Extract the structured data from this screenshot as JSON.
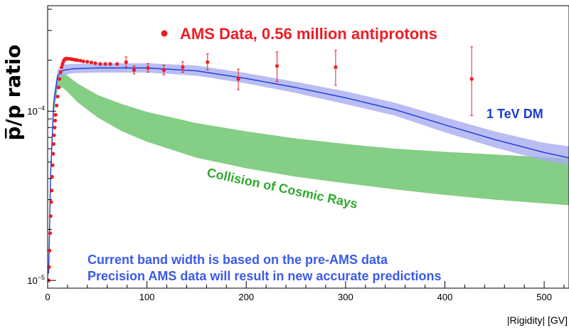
{
  "chart_data": {
    "type": "line",
    "xlabel": "|Rigidity| [GV]",
    "ylabel": "p̅/p ratio",
    "xlim": [
      0,
      525
    ],
    "ylim": [
      9e-06,
      0.00042
    ],
    "y_scale": "log",
    "x_ticks": [
      "0",
      "100",
      "200",
      "300",
      "400",
      "500"
    ],
    "y_ticks": [
      {
        "base": "10",
        "exp": "−5",
        "value": 1e-05
      },
      {
        "base": "10",
        "exp": "−4",
        "value": 0.0001
      }
    ],
    "grid": false,
    "legend": {
      "placement": "top-center",
      "text": "AMS Data, 0.56 million antiprotons",
      "color": "#ee1c25"
    },
    "annotations": {
      "dm_label": "1 TeV DM",
      "cr_label": "Collision of Cosmic Rays",
      "note_line1": "Current band width is based on the pre-AMS data",
      "note_line2": "Precision AMS data will result in new accurate predictions"
    },
    "colors": {
      "data": "#ee1c25",
      "dm_band": "#a8acf0",
      "dm_line": "#1a3ad6",
      "cr_band": "#7ecb7e",
      "cr_text": "#2ea82e",
      "note_text": "#3a5ae8"
    },
    "series": [
      {
        "name": "AMS Data, 0.56 million antiprotons",
        "kind": "points",
        "x": [
          1,
          1.5,
          2,
          2.5,
          3,
          3.5,
          4,
          4.5,
          5,
          5.5,
          6,
          6.5,
          7,
          7.5,
          8,
          9,
          10,
          11,
          12,
          13,
          14,
          15,
          16,
          17,
          18,
          19,
          20,
          22,
          24,
          26,
          28,
          30,
          33,
          36,
          40,
          44,
          48,
          53,
          58,
          63,
          70,
          79,
          87,
          101,
          117,
          136,
          161,
          192,
          231,
          290,
          427
        ],
        "y": [
          1e-05,
          1.2e-05,
          1.5e-05,
          1.9e-05,
          2.4e-05,
          2.9e-05,
          3.4e-05,
          4.1e-05,
          4.8e-05,
          5.6e-05,
          6.4e-05,
          7.2e-05,
          8e-05,
          8.8e-05,
          9.5e-05,
          0.000108,
          0.000122,
          0.000138,
          0.000155,
          0.00017,
          0.000182,
          0.00019,
          0.000197,
          0.000202,
          0.000204,
          0.000205,
          0.000204,
          0.000204,
          0.000203,
          0.000202,
          0.000201,
          0.0002,
          0.000199,
          0.000197,
          0.000196,
          0.000194,
          0.000192,
          0.00019,
          0.00019,
          0.00019,
          0.00019,
          0.000195,
          0.000175,
          0.00018,
          0.000175,
          0.000182,
          0.000195,
          0.000155,
          0.000185,
          0.000182,
          0.000155
        ],
        "yerr_up": [
          0,
          0,
          0,
          0,
          0,
          0,
          0,
          0,
          0,
          0,
          0,
          0,
          0,
          0,
          0,
          0,
          0,
          0,
          0,
          0,
          0,
          0,
          0,
          0,
          0,
          0,
          0,
          0,
          0,
          0,
          0,
          0,
          0,
          0,
          0,
          0,
          0,
          6e-07,
          8e-07,
          1e-06,
          1.2e-06,
          1.4e-05,
          1e-05,
          1.1e-05,
          1.2e-05,
          1.4e-05,
          2.3e-05,
          2.2e-05,
          3.9e-05,
          4.7e-05,
          8.5e-05
        ],
        "yerr_down": [
          0,
          0,
          0,
          0,
          0,
          0,
          0,
          0,
          0,
          0,
          0,
          0,
          0,
          0,
          0,
          0,
          0,
          0,
          0,
          0,
          0,
          0,
          0,
          0,
          0,
          0,
          0,
          0,
          0,
          0,
          0,
          0,
          0,
          0,
          0,
          0,
          0,
          6e-07,
          8e-07,
          1e-06,
          1.2e-06,
          1.3e-05,
          9e-06,
          1e-05,
          1.1e-05,
          1.2e-05,
          2e-05,
          2.1e-05,
          3.5e-05,
          4e-05,
          6.1e-05
        ]
      },
      {
        "name": "1 TeV DM",
        "kind": "band",
        "x": [
          1,
          3,
          6,
          10,
          15,
          25,
          50,
          100,
          150,
          200,
          250,
          300,
          350,
          400,
          450,
          500,
          525
        ],
        "upper": [
          1.2e-05,
          5e-05,
          0.000125,
          0.000175,
          0.000188,
          0.00019,
          0.000192,
          0.000192,
          0.000186,
          0.000168,
          0.000149,
          0.000131,
          0.000112,
          9.2e-05,
          7.6e-05,
          6.5e-05,
          6.2e-05
        ],
        "lower": [
          1e-05,
          3.8e-05,
          0.0001,
          0.000148,
          0.000162,
          0.000168,
          0.000169,
          0.000169,
          0.000162,
          0.000146,
          0.000128,
          0.00011,
          9.4e-05,
          7.5e-05,
          6.1e-05,
          5.1e-05,
          4.8e-05
        ],
        "line": [
          1.1e-05,
          4.3e-05,
          0.00011,
          0.000161,
          0.000174,
          0.000178,
          0.00018,
          0.00018,
          0.000173,
          0.000156,
          0.000138,
          0.00012,
          0.000102,
          8.3e-05,
          6.8e-05,
          5.7e-05,
          5.3e-05
        ]
      },
      {
        "name": "Collision of Cosmic Rays",
        "kind": "band",
        "x": [
          1,
          3,
          6,
          10,
          15,
          20,
          30,
          50,
          75,
          100,
          150,
          200,
          250,
          300,
          350,
          400,
          450,
          500,
          525
        ],
        "upper": [
          1.1e-05,
          4.6e-05,
          0.000115,
          0.000162,
          0.000168,
          0.000162,
          0.000146,
          0.000125,
          0.00011,
          9.9e-05,
          8.5e-05,
          7.6e-05,
          6.9e-05,
          6.4e-05,
          6e-05,
          5.75e-05,
          5.55e-05,
          5.35e-05,
          5.25e-05
        ],
        "lower": [
          1e-05,
          3.8e-05,
          9.5e-05,
          0.000135,
          0.000138,
          0.00013,
          0.000113,
          9.2e-05,
          7.6e-05,
          6.6e-05,
          5.3e-05,
          4.6e-05,
          4.1e-05,
          3.75e-05,
          3.45e-05,
          3.2e-05,
          3e-05,
          2.85e-05,
          2.78e-05
        ]
      }
    ]
  }
}
